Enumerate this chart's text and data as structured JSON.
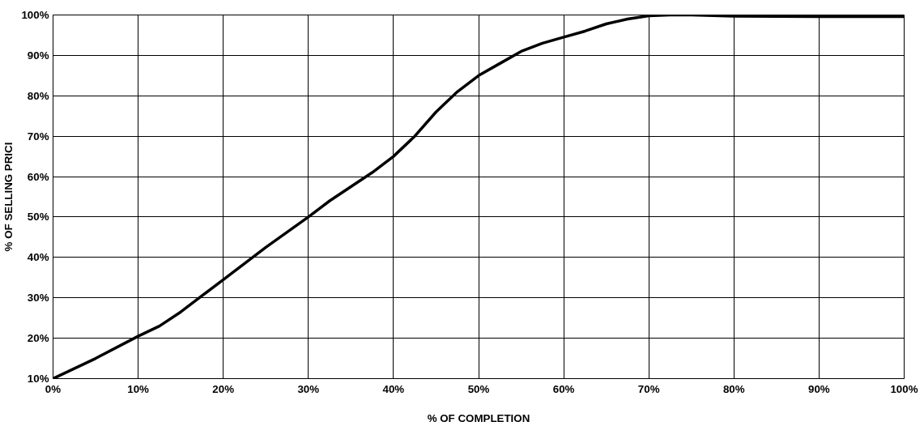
{
  "chart_data": {
    "type": "line",
    "xlabel": "% OF COMPLETION",
    "ylabel": "% OF SELLING PRICI",
    "x": [
      0,
      5,
      10,
      12.5,
      15,
      17.5,
      20,
      25,
      30,
      32.5,
      35,
      37.5,
      40,
      42.5,
      45,
      47.5,
      50,
      52.5,
      55,
      57.5,
      60,
      62.5,
      65,
      67.5,
      70,
      72.5,
      75,
      80,
      90,
      100
    ],
    "series": [
      {
        "color": "#000000",
        "values": [
          10,
          15,
          20.5,
          23,
          26.5,
          30.5,
          34.5,
          42.5,
          50,
          54,
          57.5,
          61,
          65,
          70,
          76,
          81,
          85,
          88,
          91,
          93,
          94.5,
          96,
          97.8,
          99,
          99.8,
          100,
          100,
          99.7,
          99.6,
          99.6
        ]
      }
    ],
    "xlim": [
      0,
      100
    ],
    "ylim": [
      10,
      100
    ],
    "xticks": [
      {
        "value": 0,
        "label": "0%"
      },
      {
        "value": 10,
        "label": "10%"
      },
      {
        "value": 20,
        "label": "20%"
      },
      {
        "value": 30,
        "label": "30%"
      },
      {
        "value": 40,
        "label": "40%"
      },
      {
        "value": 50,
        "label": "50%"
      },
      {
        "value": 60,
        "label": "60%"
      },
      {
        "value": 70,
        "label": "70%"
      },
      {
        "value": 80,
        "label": "80%"
      },
      {
        "value": 90,
        "label": "90%"
      },
      {
        "value": 100,
        "label": "100%"
      }
    ],
    "yticks": [
      {
        "value": 10,
        "label": "10%"
      },
      {
        "value": 20,
        "label": "20%"
      },
      {
        "value": 30,
        "label": "30%"
      },
      {
        "value": 40,
        "label": "40%"
      },
      {
        "value": 50,
        "label": "50%"
      },
      {
        "value": 60,
        "label": "60%"
      },
      {
        "value": 70,
        "label": "70%"
      },
      {
        "value": 80,
        "label": "80%"
      },
      {
        "value": 90,
        "label": "90%"
      },
      {
        "value": 100,
        "label": "100%"
      }
    ],
    "grid": true,
    "marker": "none",
    "line_style": "solid"
  }
}
